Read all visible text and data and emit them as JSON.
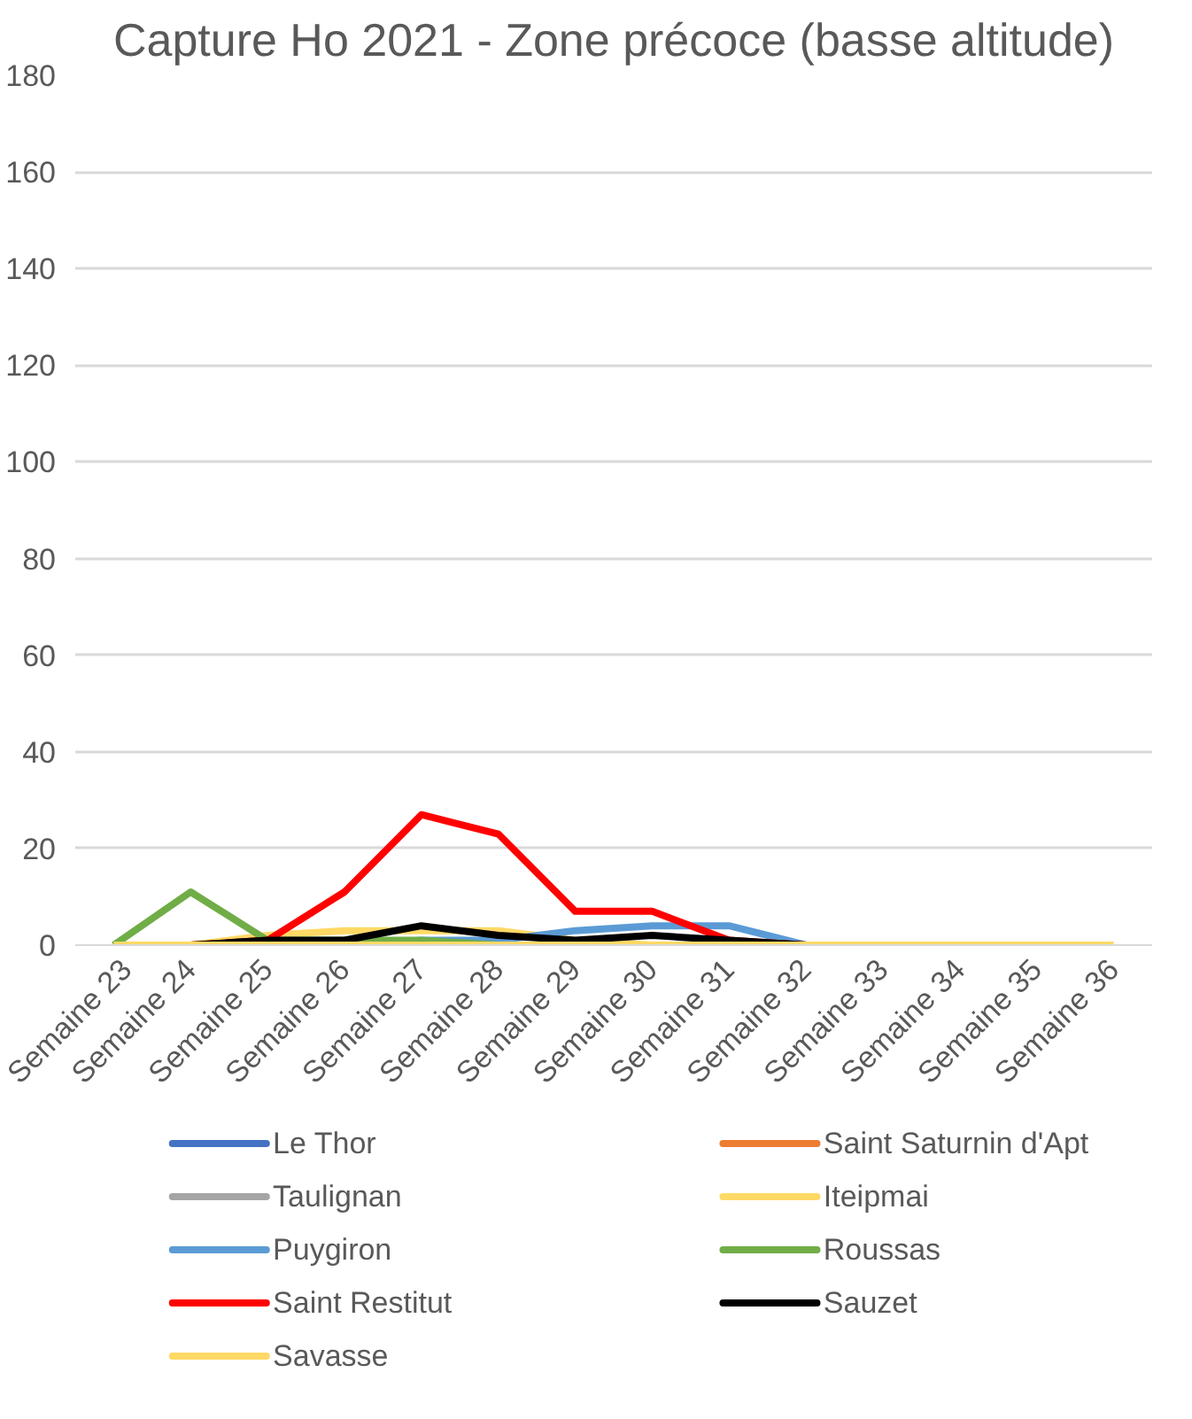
{
  "chart_data": {
    "type": "line",
    "title": "Capture Ho 2021 - Zone précoce (basse altitude)",
    "categories": [
      "Semaine 23",
      "Semaine 24",
      "Semaine 25",
      "Semaine 26",
      "Semaine 27",
      "Semaine 28",
      "Semaine 29",
      "Semaine 30",
      "Semaine 31",
      "Semaine 32",
      "Semaine 33",
      "Semaine 34",
      "Semaine 35",
      "Semaine 36"
    ],
    "ylim": [
      0,
      180
    ],
    "yticks": [
      0,
      20,
      40,
      60,
      80,
      100,
      120,
      140,
      160,
      180
    ],
    "grid": "y",
    "legend": "bottom",
    "marker": "none",
    "line_style": "solid",
    "series": [
      {
        "name": "Le Thor",
        "color": "#4472c4",
        "values": [
          null,
          null,
          null,
          null,
          null,
          null,
          null,
          null,
          null,
          null,
          null,
          null,
          null,
          null
        ]
      },
      {
        "name": "Saint Saturnin d'Apt",
        "color": "#ed7d31",
        "values": [
          null,
          null,
          null,
          null,
          null,
          null,
          null,
          null,
          null,
          null,
          null,
          null,
          null,
          null
        ]
      },
      {
        "name": "Taulignan",
        "color": "#a5a5a5",
        "values": [
          null,
          null,
          null,
          null,
          null,
          null,
          null,
          null,
          null,
          null,
          null,
          null,
          null,
          null
        ]
      },
      {
        "name": "Iteipmai",
        "color": "#ffd966",
        "values": [
          null,
          0,
          2,
          3,
          3,
          3,
          1,
          0,
          null,
          null,
          null,
          null,
          null,
          null
        ]
      },
      {
        "name": "Puygiron",
        "color": "#5b9bd5",
        "values": [
          null,
          null,
          null,
          0,
          1,
          1,
          3,
          4,
          4,
          0,
          null,
          null,
          null,
          null
        ]
      },
      {
        "name": "Roussas",
        "color": "#70ad47",
        "values": [
          0,
          11,
          1,
          1,
          1,
          0,
          null,
          null,
          null,
          null,
          null,
          null,
          null,
          null
        ]
      },
      {
        "name": "Saint Restitut",
        "color": "#ff0000",
        "values": [
          null,
          0,
          1,
          11,
          27,
          23,
          7,
          7,
          1,
          0,
          null,
          null,
          null,
          null
        ]
      },
      {
        "name": "Sauzet",
        "color": "#000000",
        "values": [
          null,
          0,
          1,
          1,
          4,
          2,
          1,
          2,
          1,
          0,
          null,
          null,
          null,
          null
        ]
      },
      {
        "name": "Savasse",
        "color": "#ffd966",
        "values": [
          0,
          0,
          0,
          0,
          0,
          0,
          0,
          0,
          0,
          0,
          0,
          0,
          0,
          0
        ]
      }
    ]
  }
}
